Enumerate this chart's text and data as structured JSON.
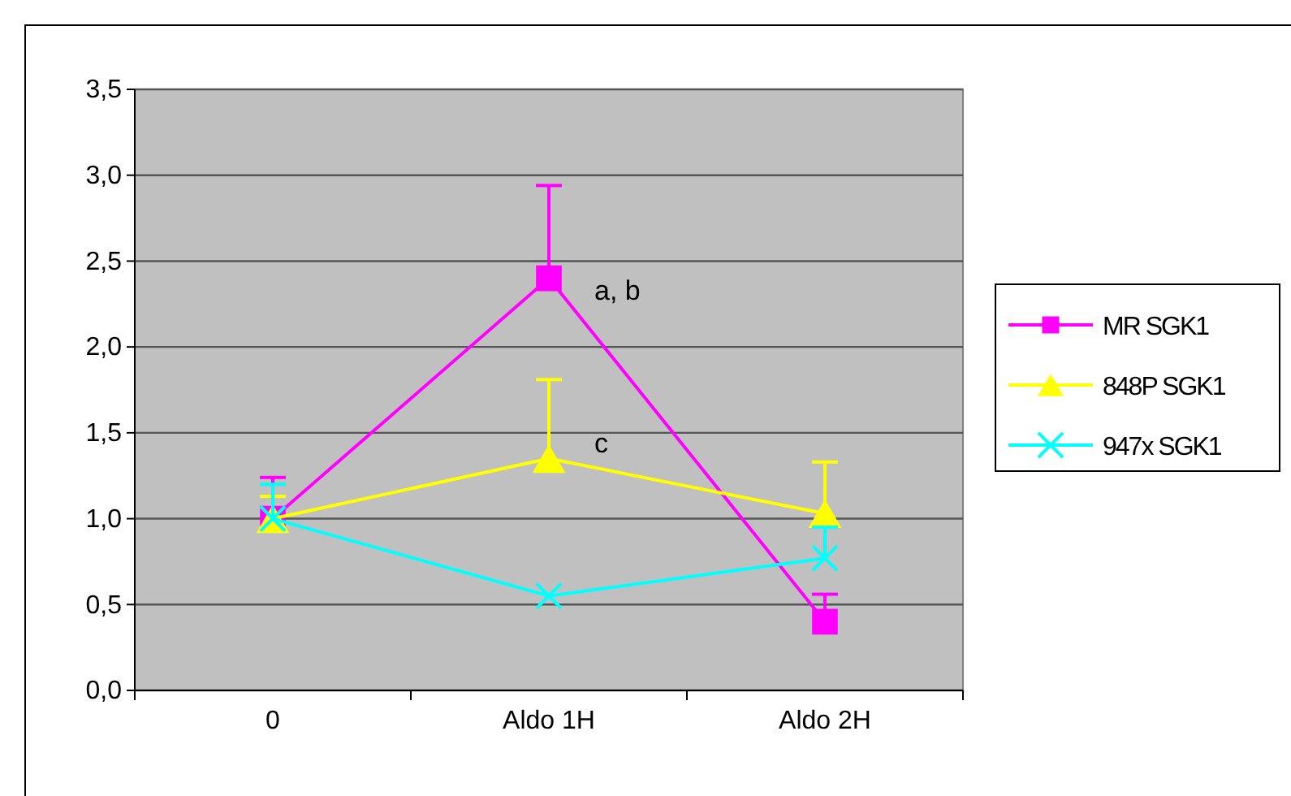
{
  "chart_data": {
    "type": "line",
    "categories": [
      "0",
      "Aldo 1H",
      "Aldo 2H"
    ],
    "series": [
      {
        "name": "MR SGK1",
        "color": "#ff00ff",
        "marker": "square",
        "values": [
          1.0,
          2.4,
          0.4
        ],
        "errors": [
          [
            1.0,
            1.24
          ],
          [
            2.4,
            2.94
          ],
          [
            0.4,
            0.56
          ]
        ]
      },
      {
        "name": "848P SGK1",
        "color": "#ffff00",
        "marker": "triangle",
        "values": [
          1.0,
          1.35,
          1.03
        ],
        "errors": [
          [
            1.0,
            1.13
          ],
          [
            1.35,
            1.81
          ],
          [
            1.03,
            1.33
          ]
        ]
      },
      {
        "name": "947x SGK1",
        "color": "#00ffff",
        "marker": "cross",
        "values": [
          1.0,
          0.55,
          0.77
        ],
        "errors": [
          [
            1.0,
            1.2
          ],
          null,
          [
            0.77,
            0.95
          ]
        ]
      }
    ],
    "ylim": [
      0,
      3.5
    ],
    "yticks": [
      {
        "value": 0,
        "label": "0,0"
      },
      {
        "value": 0.5,
        "label": "0,5"
      },
      {
        "value": 1,
        "label": "1,0"
      },
      {
        "value": 1.5,
        "label": "1,5"
      },
      {
        "value": 2,
        "label": "2,0"
      },
      {
        "value": 2.5,
        "label": "2,5"
      },
      {
        "value": 3,
        "label": "3,0"
      },
      {
        "value": 3.5,
        "label": "3,5"
      }
    ],
    "grid": "y",
    "legend": "right",
    "annotations": [
      {
        "text": "a, b",
        "x": "Aldo 1H",
        "y": 2.4
      },
      {
        "text": "c",
        "x": "Aldo 1H",
        "y": 1.35
      }
    ]
  }
}
